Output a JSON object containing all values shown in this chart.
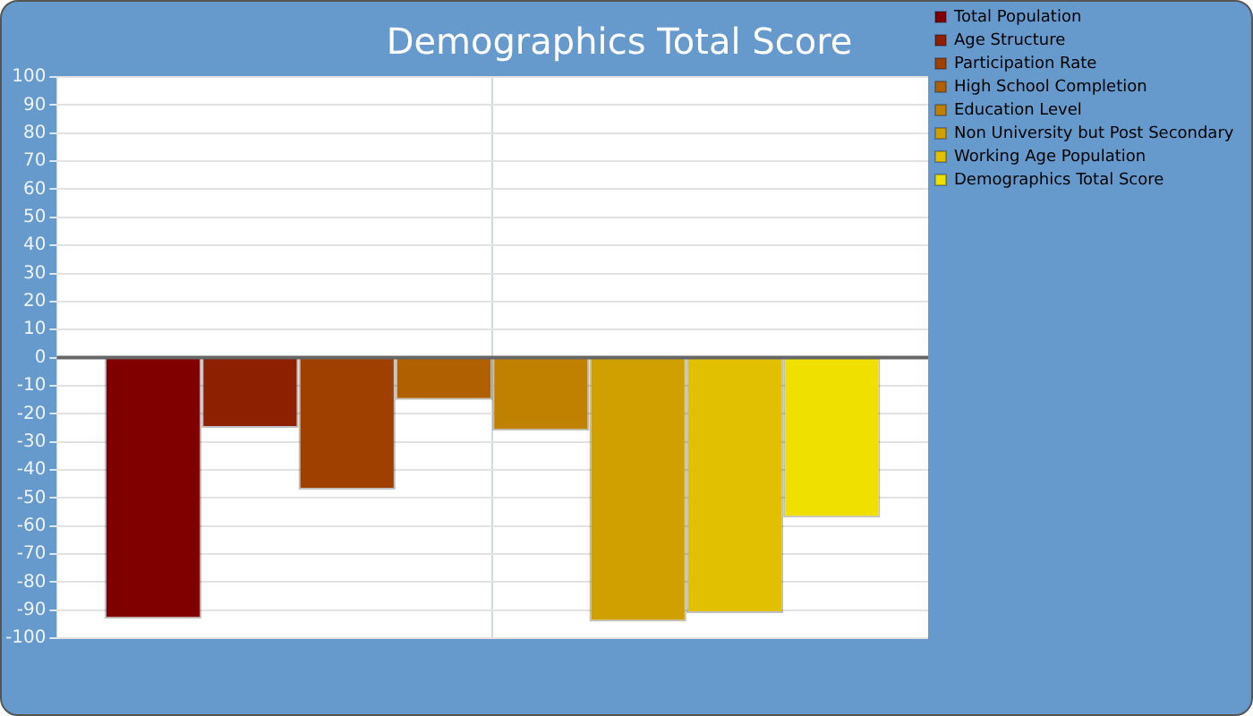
{
  "chart_data": {
    "type": "bar",
    "title": "Demographics Total Score",
    "categories": [
      null
    ],
    "series": [
      {
        "name": "Total Population",
        "color": "#800000",
        "values": [
          -93
        ]
      },
      {
        "name": "Age Structure",
        "color": "#8c2000",
        "values": [
          -25
        ]
      },
      {
        "name": "Participation Rate",
        "color": "#a04000",
        "values": [
          -47
        ]
      },
      {
        "name": "High School Completion",
        "color": "#b06000",
        "values": [
          -15
        ]
      },
      {
        "name": "Education Level",
        "color": "#c08000",
        "values": [
          -26
        ]
      },
      {
        "name": "Non University but Post Secondary",
        "color": "#d0a000",
        "values": [
          -94
        ]
      },
      {
        "name": "Working Age Population",
        "color": "#e0c000",
        "values": [
          -91
        ]
      },
      {
        "name": "Demographics Total Score",
        "color": "#f0e000",
        "values": [
          -57
        ]
      }
    ],
    "ylim": [
      -100,
      100
    ],
    "yticks": [
      -100,
      -90,
      -80,
      -70,
      -60,
      -50,
      -40,
      -30,
      -20,
      -10,
      0,
      10,
      20,
      30,
      40,
      50,
      60,
      70,
      80,
      90,
      100
    ],
    "grid": true,
    "legend": "right"
  }
}
